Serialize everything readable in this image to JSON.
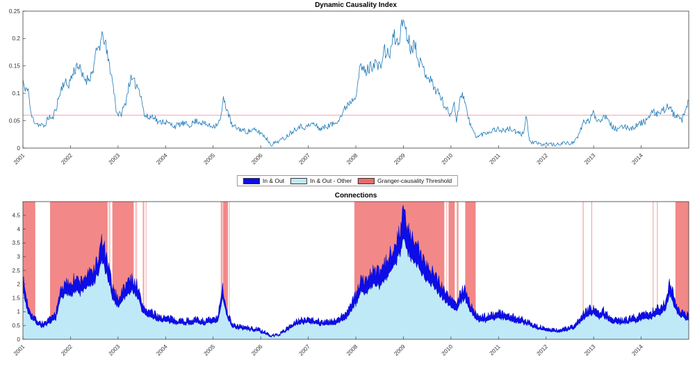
{
  "legend": {
    "items": [
      {
        "label": "In & Out",
        "color": "#0d0de8"
      },
      {
        "label": "In & Out - Other",
        "color": "#c0e9f8"
      },
      {
        "label": "Granger-causality Threshold",
        "color": "#ef6a6a"
      }
    ]
  },
  "chart_data": [
    {
      "id": "dci",
      "type": "line",
      "title": "Dynamic Causality Index",
      "xlabel": "",
      "ylabel": "",
      "xlim": [
        2001,
        2015
      ],
      "ylim": [
        0,
        0.25
      ],
      "xticks": [
        2001,
        2002,
        2003,
        2004,
        2005,
        2006,
        2007,
        2008,
        2009,
        2010,
        2011,
        2012,
        2013,
        2014
      ],
      "yticks": [
        0,
        0.05,
        0.1,
        0.15,
        0.2,
        0.25
      ],
      "line_color": "#1b79b8",
      "threshold": {
        "value": 0.06,
        "color": "#f9a9b6",
        "label": "Granger-causality Threshold"
      },
      "noise": {
        "seed": 11,
        "base": 0.003,
        "scale": 0.06
      },
      "x": [
        2001.0,
        2001.05,
        2001.1,
        2001.17,
        2001.25,
        2001.35,
        2001.45,
        2001.55,
        2001.62,
        2001.7,
        2001.78,
        2001.85,
        2001.95,
        2002.05,
        2002.15,
        2002.25,
        2002.35,
        2002.45,
        2002.55,
        2002.62,
        2002.7,
        2002.78,
        2002.85,
        2002.92,
        2002.97,
        2003.05,
        2003.15,
        2003.25,
        2003.32,
        2003.4,
        2003.48,
        2003.55,
        2003.65,
        2003.75,
        2003.85,
        2003.95,
        2004.05,
        2004.2,
        2004.35,
        2004.5,
        2004.65,
        2004.8,
        2004.95,
        2005.05,
        2005.15,
        2005.22,
        2005.3,
        2005.4,
        2005.55,
        2005.7,
        2005.85,
        2006.0,
        2006.1,
        2006.22,
        2006.35,
        2006.5,
        2006.65,
        2006.8,
        2006.95,
        2007.1,
        2007.25,
        2007.4,
        2007.55,
        2007.7,
        2007.82,
        2007.92,
        2008.0,
        2008.1,
        2008.2,
        2008.3,
        2008.4,
        2008.5,
        2008.6,
        2008.7,
        2008.8,
        2008.88,
        2008.95,
        2009.0,
        2009.08,
        2009.15,
        2009.25,
        2009.35,
        2009.45,
        2009.55,
        2009.65,
        2009.75,
        2009.85,
        2009.95,
        2010.0,
        2010.06,
        2010.12,
        2010.2,
        2010.28,
        2010.36,
        2010.45,
        2010.55,
        2010.65,
        2010.8,
        2010.95,
        2011.1,
        2011.25,
        2011.4,
        2011.52,
        2011.58,
        2011.65,
        2011.75,
        2011.9,
        2012.05,
        2012.2,
        2012.35,
        2012.5,
        2012.65,
        2012.8,
        2012.9,
        2013.0,
        2013.08,
        2013.18,
        2013.28,
        2013.38,
        2013.5,
        2013.65,
        2013.8,
        2013.95,
        2014.1,
        2014.25,
        2014.4,
        2014.55,
        2014.7,
        2014.85,
        2014.95,
        2015.0
      ],
      "y": [
        0.125,
        0.1,
        0.115,
        0.06,
        0.048,
        0.042,
        0.04,
        0.058,
        0.052,
        0.075,
        0.1,
        0.12,
        0.115,
        0.135,
        0.155,
        0.13,
        0.125,
        0.135,
        0.175,
        0.19,
        0.205,
        0.165,
        0.14,
        0.1,
        0.065,
        0.06,
        0.08,
        0.125,
        0.12,
        0.115,
        0.1,
        0.06,
        0.055,
        0.06,
        0.045,
        0.05,
        0.045,
        0.04,
        0.045,
        0.042,
        0.05,
        0.045,
        0.04,
        0.042,
        0.05,
        0.09,
        0.068,
        0.04,
        0.035,
        0.03,
        0.033,
        0.028,
        0.02,
        0.006,
        0.012,
        0.018,
        0.03,
        0.04,
        0.038,
        0.045,
        0.035,
        0.04,
        0.045,
        0.06,
        0.08,
        0.088,
        0.1,
        0.15,
        0.138,
        0.148,
        0.158,
        0.145,
        0.178,
        0.168,
        0.205,
        0.19,
        0.215,
        0.238,
        0.205,
        0.185,
        0.19,
        0.155,
        0.14,
        0.128,
        0.11,
        0.1,
        0.08,
        0.065,
        0.06,
        0.09,
        0.045,
        0.1,
        0.093,
        0.055,
        0.033,
        0.02,
        0.025,
        0.03,
        0.035,
        0.032,
        0.035,
        0.027,
        0.025,
        0.062,
        0.012,
        0.01,
        0.006,
        0.008,
        0.005,
        0.01,
        0.008,
        0.016,
        0.05,
        0.048,
        0.065,
        0.05,
        0.055,
        0.06,
        0.04,
        0.033,
        0.04,
        0.036,
        0.044,
        0.05,
        0.065,
        0.062,
        0.078,
        0.06,
        0.05,
        0.07,
        0.09
      ]
    },
    {
      "id": "connections",
      "type": "area",
      "title": "Connections",
      "xlabel": "",
      "ylabel": "",
      "xlim": [
        2001,
        2015
      ],
      "ylim": [
        0,
        5
      ],
      "xticks": [
        2001,
        2002,
        2003,
        2004,
        2005,
        2006,
        2007,
        2008,
        2009,
        2010,
        2011,
        2012,
        2013,
        2014
      ],
      "yticks": [
        0,
        0.5,
        1,
        1.5,
        2,
        2.5,
        3,
        3.5,
        4,
        4.5
      ],
      "noise": {
        "seed": 7,
        "base": 0.04,
        "scale": 0.09
      },
      "x": [
        2001.0,
        2001.1,
        2001.2,
        2001.3,
        2001.4,
        2001.5,
        2001.6,
        2001.7,
        2001.8,
        2001.9,
        2002.0,
        2002.1,
        2002.2,
        2002.3,
        2002.4,
        2002.5,
        2002.6,
        2002.65,
        2002.7,
        2002.8,
        2002.9,
        2003.0,
        2003.1,
        2003.2,
        2003.3,
        2003.4,
        2003.5,
        2003.6,
        2003.7,
        2003.8,
        2003.9,
        2004.0,
        2004.2,
        2004.4,
        2004.6,
        2004.8,
        2005.0,
        2005.1,
        2005.2,
        2005.3,
        2005.4,
        2005.5,
        2005.7,
        2005.9,
        2006.0,
        2006.2,
        2006.4,
        2006.6,
        2006.8,
        2007.0,
        2007.2,
        2007.4,
        2007.6,
        2007.8,
        2008.0,
        2008.1,
        2008.2,
        2008.3,
        2008.4,
        2008.5,
        2008.6,
        2008.7,
        2008.8,
        2008.9,
        2009.0,
        2009.05,
        2009.1,
        2009.2,
        2009.3,
        2009.4,
        2009.5,
        2009.6,
        2009.7,
        2009.8,
        2009.9,
        2010.0,
        2010.1,
        2010.2,
        2010.3,
        2010.4,
        2010.5,
        2010.6,
        2010.8,
        2011.0,
        2011.2,
        2011.4,
        2011.6,
        2011.8,
        2012.0,
        2012.2,
        2012.4,
        2012.6,
        2012.8,
        2012.9,
        2013.0,
        2013.1,
        2013.2,
        2013.3,
        2013.4,
        2013.6,
        2013.8,
        2014.0,
        2014.2,
        2014.4,
        2014.5,
        2014.6,
        2014.7,
        2014.8,
        2014.9,
        2015.0
      ],
      "series": [
        {
          "name": "In & Out",
          "color": "#0d0de8",
          "edge": "#0808c0",
          "values": [
            2.2,
            1.3,
            0.9,
            0.7,
            0.6,
            0.65,
            0.8,
            1.0,
            1.9,
            2.0,
            2.1,
            2.2,
            2.1,
            2.3,
            2.4,
            2.6,
            3.0,
            3.6,
            3.4,
            2.6,
            1.8,
            1.5,
            1.8,
            2.1,
            2.2,
            2.0,
            1.3,
            1.1,
            1.0,
            0.9,
            0.85,
            0.8,
            0.75,
            0.7,
            0.75,
            0.7,
            0.75,
            0.8,
            1.9,
            1.0,
            0.6,
            0.5,
            0.45,
            0.4,
            0.35,
            0.15,
            0.2,
            0.5,
            0.7,
            0.8,
            0.7,
            0.65,
            0.7,
            1.0,
            1.6,
            2.2,
            2.1,
            2.4,
            2.5,
            2.4,
            2.7,
            3.0,
            3.5,
            3.8,
            4.7,
            4.3,
            3.9,
            3.6,
            3.3,
            3.0,
            2.8,
            2.5,
            2.3,
            2.0,
            1.7,
            1.5,
            1.3,
            1.7,
            1.9,
            1.3,
            1.0,
            0.8,
            0.9,
            1.0,
            0.9,
            0.8,
            0.7,
            0.5,
            0.4,
            0.35,
            0.4,
            0.5,
            1.0,
            1.1,
            1.2,
            1.0,
            1.1,
            0.9,
            0.8,
            0.7,
            0.8,
            0.9,
            1.0,
            1.2,
            1.3,
            2.1,
            1.5,
            1.1,
            1.0,
            0.9
          ]
        },
        {
          "name": "In & Out - Other",
          "color": "#c0e9f8",
          "values": [
            1.75,
            1.0,
            0.7,
            0.55,
            0.45,
            0.5,
            0.6,
            0.78,
            1.5,
            1.58,
            1.65,
            1.75,
            1.65,
            1.82,
            1.9,
            2.05,
            2.4,
            2.85,
            2.7,
            2.05,
            1.42,
            1.18,
            1.42,
            1.65,
            1.75,
            1.58,
            1.02,
            0.85,
            0.78,
            0.7,
            0.66,
            0.62,
            0.58,
            0.55,
            0.58,
            0.55,
            0.58,
            0.62,
            1.5,
            0.78,
            0.46,
            0.39,
            0.35,
            0.3,
            0.26,
            0.1,
            0.15,
            0.39,
            0.55,
            0.62,
            0.55,
            0.5,
            0.55,
            0.78,
            1.25,
            1.72,
            1.65,
            1.88,
            1.95,
            1.88,
            2.12,
            2.36,
            2.75,
            3.0,
            3.7,
            3.4,
            3.07,
            2.83,
            2.6,
            2.36,
            2.2,
            1.96,
            1.8,
            1.57,
            1.33,
            1.18,
            1.02,
            1.33,
            1.5,
            1.02,
            0.78,
            0.62,
            0.7,
            0.78,
            0.7,
            0.62,
            0.55,
            0.39,
            0.3,
            0.26,
            0.3,
            0.39,
            0.78,
            0.86,
            0.94,
            0.78,
            0.86,
            0.7,
            0.62,
            0.55,
            0.62,
            0.7,
            0.78,
            0.94,
            1.02,
            1.65,
            1.18,
            0.86,
            0.78,
            0.7
          ]
        }
      ],
      "bands": {
        "name": "Granger-causality Threshold",
        "color": "#ed5a5a",
        "intervals": [
          [
            2001.0,
            2001.26,
            0.72
          ],
          [
            2001.57,
            2002.78,
            0.72
          ],
          [
            2002.8,
            2002.84,
            0.35
          ],
          [
            2002.88,
            2003.33,
            0.72
          ],
          [
            2003.36,
            2003.4,
            0.35
          ],
          [
            2003.52,
            2003.55,
            0.55
          ],
          [
            2003.58,
            2003.6,
            0.4
          ],
          [
            2005.16,
            2005.2,
            0.55
          ],
          [
            2005.21,
            2005.31,
            0.72
          ],
          [
            2005.33,
            2005.35,
            0.4
          ],
          [
            2007.97,
            2009.86,
            0.72
          ],
          [
            2009.9,
            2009.92,
            0.4
          ],
          [
            2009.95,
            2010.08,
            0.72
          ],
          [
            2010.12,
            2010.16,
            0.55
          ],
          [
            2010.3,
            2010.52,
            0.72
          ],
          [
            2012.77,
            2012.79,
            0.5
          ],
          [
            2012.95,
            2012.97,
            0.5
          ],
          [
            2014.24,
            2014.26,
            0.45
          ],
          [
            2014.33,
            2014.35,
            0.45
          ],
          [
            2014.72,
            2015.0,
            0.72
          ]
        ]
      }
    }
  ]
}
